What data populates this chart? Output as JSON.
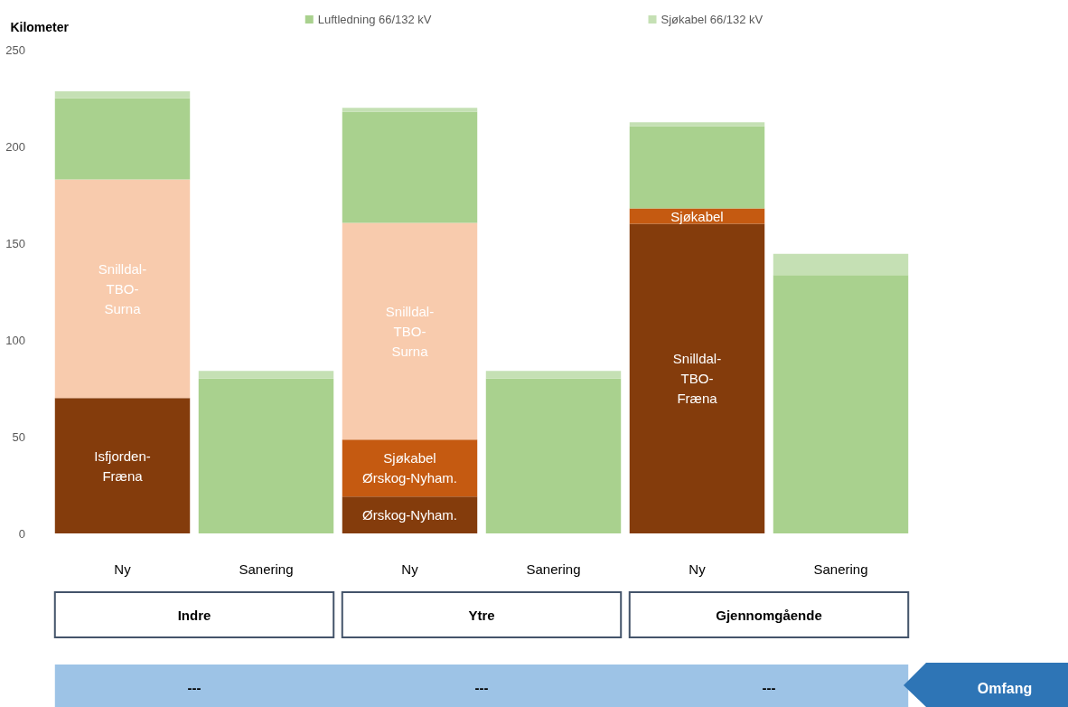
{
  "chart_data": {
    "type": "bar",
    "ylabel": "Kilometer",
    "categories": [
      "Ny",
      "Sanering",
      "Ny",
      "Sanering",
      "Ny",
      "Sanering"
    ],
    "stacked": true,
    "ylim": [
      0,
      250
    ],
    "yticks": [
      0,
      50,
      100,
      150,
      200,
      250
    ],
    "grid": false,
    "legend": "top",
    "series": [
      {
        "color": "#843c0c",
        "values": [
          70,
          null,
          19,
          null,
          160,
          null
        ],
        "value_labels": [
          "Isfjorden-\nFræna",
          null,
          "Ørskog-Nyham.",
          null,
          "Snilldal-\nTBO-\nFræna",
          null
        ]
      },
      {
        "color": "#c55a11",
        "values": [
          null,
          null,
          29.5,
          null,
          8,
          null
        ],
        "value_labels": [
          null,
          null,
          "Sjøkabel\nØrskog-Nyham.",
          null,
          "Sjøkabel",
          null
        ]
      },
      {
        "color": "#f8cbad",
        "values": [
          113,
          null,
          112,
          null,
          null,
          null
        ],
        "value_labels": [
          "Snilldal-\nTBO-\nSurna",
          null,
          "Snilldal-\nTBO-\nSurna",
          null,
          null,
          null
        ]
      },
      {
        "name": "Luftledning 66/132 kV",
        "color": "#a9d18e",
        "values": [
          42,
          80,
          57.5,
          80,
          42.5,
          133.5
        ]
      },
      {
        "name": "Sjøkabel 66/132 kV",
        "color": "#c5e0b4",
        "values": [
          3.5,
          4,
          2,
          4,
          2,
          11
        ]
      }
    ],
    "annotations": [
      "Indre",
      "Ytre",
      "Gjennomgående",
      "---",
      "---",
      "---",
      "Omfang"
    ]
  }
}
